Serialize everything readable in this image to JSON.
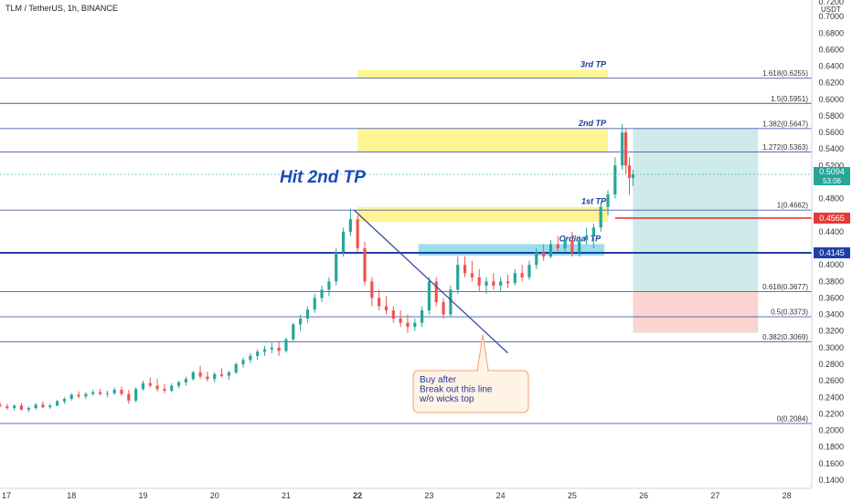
{
  "header": {
    "title": "TLM / TetherUS, 1h, BINANCE"
  },
  "colors": {
    "up": "#26a69a",
    "down": "#ef5350",
    "fib_line": "#4a5ab0",
    "support_line": "#1e3fa8",
    "stop_line": "#e53935",
    "tp_zone": "#fff06e",
    "entry_zone": "#7fd6e6",
    "target_box": "#b9e3df",
    "stop_box": "#f9c9c6",
    "trendline": "#3a4aa0",
    "headline": "#1a49b8",
    "callout_text": "#1a3a9a"
  },
  "chart_data": {
    "type": "candlestick",
    "symbol": "TLM / TetherUS",
    "timeframe": "1h",
    "exchange": "BINANCE",
    "currency_label": "USDT",
    "x_axis_labels": [
      "17",
      "18",
      "19",
      "20",
      "21",
      "22",
      "23",
      "24",
      "25",
      "26",
      "27",
      "28"
    ],
    "x_axis_range": [
      17,
      28.35
    ],
    "y_axis_range": [
      0.13,
      0.72
    ],
    "y_ticks": [
      0.14,
      0.16,
      0.18,
      0.2,
      0.22,
      0.24,
      0.26,
      0.28,
      0.3,
      0.32,
      0.34,
      0.36,
      0.38,
      0.4,
      0.42,
      0.44,
      0.46,
      0.48,
      0.5,
      0.52,
      0.54,
      0.56,
      0.58,
      0.6,
      0.62,
      0.64,
      0.66,
      0.68,
      0.7
    ],
    "y_tick_labels": [
      "0.1400",
      "0.1600",
      "0.1800",
      "0.2000",
      "0.2200",
      "0.2400",
      "0.2600",
      "0.2800",
      "0.3000",
      "0.3200",
      "0.3400",
      "0.3600",
      "0.3800",
      "0.4000",
      "0.4200",
      "0.4400",
      "0.4600",
      "0.4800",
      "0.5000",
      "0.5200",
      "0.5400",
      "0.5600",
      "0.5800",
      "0.6000",
      "0.6200",
      "0.6400",
      "0.6600",
      "0.6800",
      "0.7000"
    ],
    "fib_levels": [
      {
        "label": "1.618(0.6255)",
        "value": 0.6255
      },
      {
        "label": "1.5(0.5951)",
        "value": 0.5951
      },
      {
        "label": "1.382(0.5647)",
        "value": 0.5647
      },
      {
        "label": "1.272(0.5363)",
        "value": 0.5363
      },
      {
        "label": "1(0.4662)",
        "value": 0.4662
      },
      {
        "label": "0.618(0.3677)",
        "value": 0.3677
      },
      {
        "label": "0.5(0.3373)",
        "value": 0.3373
      },
      {
        "label": "0.382(0.3069)",
        "value": 0.3069
      },
      {
        "label": "0(0.2084)",
        "value": 0.2084
      }
    ],
    "current_price": {
      "value": 0.5094,
      "label": "0.5094",
      "countdown": "53:06"
    },
    "price_markers": [
      {
        "value": 0.4565,
        "label": "0.4565",
        "color": "#e53935"
      },
      {
        "value": 0.4145,
        "label": "0.4145",
        "color": "#1e3fa8"
      }
    ],
    "zones": [
      {
        "label": "3rd TP",
        "x0": 22.0,
        "x1": 25.5,
        "y0": 0.6255,
        "y1": 0.6355,
        "kind": "tp"
      },
      {
        "label": "2nd TP",
        "x0": 22.0,
        "x1": 25.5,
        "y0": 0.5363,
        "y1": 0.5647,
        "kind": "tp"
      },
      {
        "label": "1st TP",
        "x0": 22.0,
        "x1": 25.5,
        "y0": 0.452,
        "y1": 0.47,
        "kind": "tp"
      },
      {
        "label": "Ordinal TP",
        "x0": 22.85,
        "x1": 25.45,
        "y0": 0.411,
        "y1": 0.425,
        "kind": "entry"
      }
    ],
    "position": {
      "x0": 25.85,
      "x1": 27.6,
      "entry": 0.3677,
      "target": 0.5647,
      "stop": 0.318
    },
    "trendline": {
      "x0": 21.95,
      "y0": 0.4662,
      "x1": 24.1,
      "y1": 0.2935
    },
    "headline": "Hit 2nd TP",
    "callout": {
      "lines": [
        "Buy after",
        "Break out this line",
        "w/o wicks top"
      ],
      "anchor_x": 23.75,
      "anchor_y": 0.318
    },
    "candles": [
      {
        "x": 17.0,
        "o": 0.231,
        "h": 0.234,
        "l": 0.228,
        "c": 0.229
      },
      {
        "x": 17.1,
        "o": 0.229,
        "h": 0.232,
        "l": 0.225,
        "c": 0.227
      },
      {
        "x": 17.2,
        "o": 0.227,
        "h": 0.231,
        "l": 0.224,
        "c": 0.23
      },
      {
        "x": 17.3,
        "o": 0.23,
        "h": 0.233,
        "l": 0.224,
        "c": 0.225
      },
      {
        "x": 17.4,
        "o": 0.225,
        "h": 0.229,
        "l": 0.222,
        "c": 0.227
      },
      {
        "x": 17.5,
        "o": 0.227,
        "h": 0.233,
        "l": 0.225,
        "c": 0.231
      },
      {
        "x": 17.6,
        "o": 0.231,
        "h": 0.235,
        "l": 0.227,
        "c": 0.228
      },
      {
        "x": 17.7,
        "o": 0.228,
        "h": 0.232,
        "l": 0.226,
        "c": 0.23
      },
      {
        "x": 17.8,
        "o": 0.23,
        "h": 0.237,
        "l": 0.229,
        "c": 0.235
      },
      {
        "x": 17.9,
        "o": 0.235,
        "h": 0.24,
        "l": 0.232,
        "c": 0.238
      },
      {
        "x": 18.0,
        "o": 0.238,
        "h": 0.245,
        "l": 0.236,
        "c": 0.243
      },
      {
        "x": 18.1,
        "o": 0.243,
        "h": 0.247,
        "l": 0.239,
        "c": 0.241
      },
      {
        "x": 18.2,
        "o": 0.241,
        "h": 0.246,
        "l": 0.238,
        "c": 0.244
      },
      {
        "x": 18.3,
        "o": 0.244,
        "h": 0.249,
        "l": 0.242,
        "c": 0.246
      },
      {
        "x": 18.4,
        "o": 0.246,
        "h": 0.25,
        "l": 0.242,
        "c": 0.244
      },
      {
        "x": 18.5,
        "o": 0.244,
        "h": 0.248,
        "l": 0.24,
        "c": 0.245
      },
      {
        "x": 18.6,
        "o": 0.245,
        "h": 0.252,
        "l": 0.243,
        "c": 0.249
      },
      {
        "x": 18.7,
        "o": 0.249,
        "h": 0.253,
        "l": 0.242,
        "c": 0.244
      },
      {
        "x": 18.8,
        "o": 0.244,
        "h": 0.249,
        "l": 0.232,
        "c": 0.236
      },
      {
        "x": 18.9,
        "o": 0.236,
        "h": 0.252,
        "l": 0.234,
        "c": 0.25
      },
      {
        "x": 19.0,
        "o": 0.25,
        "h": 0.26,
        "l": 0.248,
        "c": 0.257
      },
      {
        "x": 19.1,
        "o": 0.257,
        "h": 0.264,
        "l": 0.252,
        "c": 0.254
      },
      {
        "x": 19.2,
        "o": 0.254,
        "h": 0.262,
        "l": 0.247,
        "c": 0.25
      },
      {
        "x": 19.3,
        "o": 0.25,
        "h": 0.256,
        "l": 0.245,
        "c": 0.248
      },
      {
        "x": 19.4,
        "o": 0.248,
        "h": 0.257,
        "l": 0.246,
        "c": 0.254
      },
      {
        "x": 19.5,
        "o": 0.254,
        "h": 0.26,
        "l": 0.251,
        "c": 0.258
      },
      {
        "x": 19.6,
        "o": 0.258,
        "h": 0.265,
        "l": 0.254,
        "c": 0.262
      },
      {
        "x": 19.7,
        "o": 0.262,
        "h": 0.272,
        "l": 0.26,
        "c": 0.27
      },
      {
        "x": 19.8,
        "o": 0.27,
        "h": 0.278,
        "l": 0.262,
        "c": 0.265
      },
      {
        "x": 19.9,
        "o": 0.265,
        "h": 0.271,
        "l": 0.259,
        "c": 0.262
      },
      {
        "x": 20.0,
        "o": 0.262,
        "h": 0.27,
        "l": 0.258,
        "c": 0.268
      },
      {
        "x": 20.1,
        "o": 0.268,
        "h": 0.275,
        "l": 0.264,
        "c": 0.266
      },
      {
        "x": 20.2,
        "o": 0.266,
        "h": 0.272,
        "l": 0.261,
        "c": 0.27
      },
      {
        "x": 20.3,
        "o": 0.27,
        "h": 0.282,
        "l": 0.268,
        "c": 0.28
      },
      {
        "x": 20.4,
        "o": 0.28,
        "h": 0.288,
        "l": 0.276,
        "c": 0.285
      },
      {
        "x": 20.5,
        "o": 0.285,
        "h": 0.293,
        "l": 0.281,
        "c": 0.29
      },
      {
        "x": 20.6,
        "o": 0.29,
        "h": 0.298,
        "l": 0.285,
        "c": 0.295
      },
      {
        "x": 20.7,
        "o": 0.295,
        "h": 0.302,
        "l": 0.29,
        "c": 0.298
      },
      {
        "x": 20.8,
        "o": 0.298,
        "h": 0.306,
        "l": 0.293,
        "c": 0.3
      },
      {
        "x": 20.9,
        "o": 0.3,
        "h": 0.308,
        "l": 0.29,
        "c": 0.296
      },
      {
        "x": 21.0,
        "o": 0.296,
        "h": 0.312,
        "l": 0.294,
        "c": 0.31
      },
      {
        "x": 21.1,
        "o": 0.31,
        "h": 0.33,
        "l": 0.308,
        "c": 0.328
      },
      {
        "x": 21.2,
        "o": 0.328,
        "h": 0.34,
        "l": 0.32,
        "c": 0.335
      },
      {
        "x": 21.3,
        "o": 0.335,
        "h": 0.35,
        "l": 0.33,
        "c": 0.346
      },
      {
        "x": 21.4,
        "o": 0.346,
        "h": 0.365,
        "l": 0.342,
        "c": 0.36
      },
      {
        "x": 21.5,
        "o": 0.36,
        "h": 0.375,
        "l": 0.355,
        "c": 0.37
      },
      {
        "x": 21.6,
        "o": 0.37,
        "h": 0.385,
        "l": 0.362,
        "c": 0.38
      },
      {
        "x": 21.7,
        "o": 0.38,
        "h": 0.42,
        "l": 0.375,
        "c": 0.415
      },
      {
        "x": 21.8,
        "o": 0.415,
        "h": 0.445,
        "l": 0.41,
        "c": 0.44
      },
      {
        "x": 21.9,
        "o": 0.44,
        "h": 0.468,
        "l": 0.435,
        "c": 0.455
      },
      {
        "x": 22.0,
        "o": 0.455,
        "h": 0.46,
        "l": 0.415,
        "c": 0.42
      },
      {
        "x": 22.1,
        "o": 0.42,
        "h": 0.428,
        "l": 0.375,
        "c": 0.38
      },
      {
        "x": 22.2,
        "o": 0.38,
        "h": 0.385,
        "l": 0.35,
        "c": 0.36
      },
      {
        "x": 22.3,
        "o": 0.36,
        "h": 0.37,
        "l": 0.345,
        "c": 0.35
      },
      {
        "x": 22.4,
        "o": 0.35,
        "h": 0.362,
        "l": 0.34,
        "c": 0.345
      },
      {
        "x": 22.5,
        "o": 0.345,
        "h": 0.35,
        "l": 0.33,
        "c": 0.335
      },
      {
        "x": 22.6,
        "o": 0.335,
        "h": 0.345,
        "l": 0.325,
        "c": 0.33
      },
      {
        "x": 22.7,
        "o": 0.33,
        "h": 0.34,
        "l": 0.318,
        "c": 0.325
      },
      {
        "x": 22.8,
        "o": 0.325,
        "h": 0.335,
        "l": 0.32,
        "c": 0.33
      },
      {
        "x": 22.9,
        "o": 0.33,
        "h": 0.35,
        "l": 0.325,
        "c": 0.345
      },
      {
        "x": 23.0,
        "o": 0.345,
        "h": 0.385,
        "l": 0.34,
        "c": 0.38
      },
      {
        "x": 23.1,
        "o": 0.38,
        "h": 0.385,
        "l": 0.35,
        "c": 0.355
      },
      {
        "x": 23.2,
        "o": 0.355,
        "h": 0.36,
        "l": 0.335,
        "c": 0.34
      },
      {
        "x": 23.3,
        "o": 0.34,
        "h": 0.375,
        "l": 0.338,
        "c": 0.37
      },
      {
        "x": 23.4,
        "o": 0.37,
        "h": 0.41,
        "l": 0.365,
        "c": 0.4
      },
      {
        "x": 23.5,
        "o": 0.4,
        "h": 0.41,
        "l": 0.385,
        "c": 0.39
      },
      {
        "x": 23.6,
        "o": 0.39,
        "h": 0.405,
        "l": 0.38,
        "c": 0.385
      },
      {
        "x": 23.7,
        "o": 0.385,
        "h": 0.395,
        "l": 0.368,
        "c": 0.375
      },
      {
        "x": 23.8,
        "o": 0.375,
        "h": 0.385,
        "l": 0.365,
        "c": 0.38
      },
      {
        "x": 23.9,
        "o": 0.38,
        "h": 0.39,
        "l": 0.37,
        "c": 0.375
      },
      {
        "x": 24.0,
        "o": 0.375,
        "h": 0.385,
        "l": 0.368,
        "c": 0.38
      },
      {
        "x": 24.1,
        "o": 0.38,
        "h": 0.388,
        "l": 0.372,
        "c": 0.378
      },
      {
        "x": 24.2,
        "o": 0.378,
        "h": 0.395,
        "l": 0.375,
        "c": 0.39
      },
      {
        "x": 24.3,
        "o": 0.39,
        "h": 0.4,
        "l": 0.38,
        "c": 0.385
      },
      {
        "x": 24.4,
        "o": 0.385,
        "h": 0.405,
        "l": 0.382,
        "c": 0.4
      },
      {
        "x": 24.5,
        "o": 0.4,
        "h": 0.42,
        "l": 0.395,
        "c": 0.415
      },
      {
        "x": 24.6,
        "o": 0.415,
        "h": 0.425,
        "l": 0.405,
        "c": 0.41
      },
      {
        "x": 24.7,
        "o": 0.41,
        "h": 0.43,
        "l": 0.408,
        "c": 0.425
      },
      {
        "x": 24.8,
        "o": 0.425,
        "h": 0.435,
        "l": 0.415,
        "c": 0.42
      },
      {
        "x": 24.9,
        "o": 0.42,
        "h": 0.435,
        "l": 0.415,
        "c": 0.43
      },
      {
        "x": 25.0,
        "o": 0.43,
        "h": 0.44,
        "l": 0.41,
        "c": 0.415
      },
      {
        "x": 25.1,
        "o": 0.415,
        "h": 0.435,
        "l": 0.41,
        "c": 0.43
      },
      {
        "x": 25.2,
        "o": 0.43,
        "h": 0.445,
        "l": 0.425,
        "c": 0.435
      },
      {
        "x": 25.3,
        "o": 0.435,
        "h": 0.45,
        "l": 0.42,
        "c": 0.445
      },
      {
        "x": 25.4,
        "o": 0.445,
        "h": 0.475,
        "l": 0.44,
        "c": 0.47
      },
      {
        "x": 25.5,
        "o": 0.47,
        "h": 0.49,
        "l": 0.46,
        "c": 0.485
      },
      {
        "x": 25.6,
        "o": 0.485,
        "h": 0.53,
        "l": 0.48,
        "c": 0.52
      },
      {
        "x": 25.7,
        "o": 0.52,
        "h": 0.57,
        "l": 0.515,
        "c": 0.56
      },
      {
        "x": 25.75,
        "o": 0.56,
        "h": 0.565,
        "l": 0.51,
        "c": 0.52
      },
      {
        "x": 25.8,
        "o": 0.52,
        "h": 0.53,
        "l": 0.485,
        "c": 0.505
      },
      {
        "x": 25.85,
        "o": 0.505,
        "h": 0.515,
        "l": 0.495,
        "c": 0.5094
      }
    ]
  }
}
